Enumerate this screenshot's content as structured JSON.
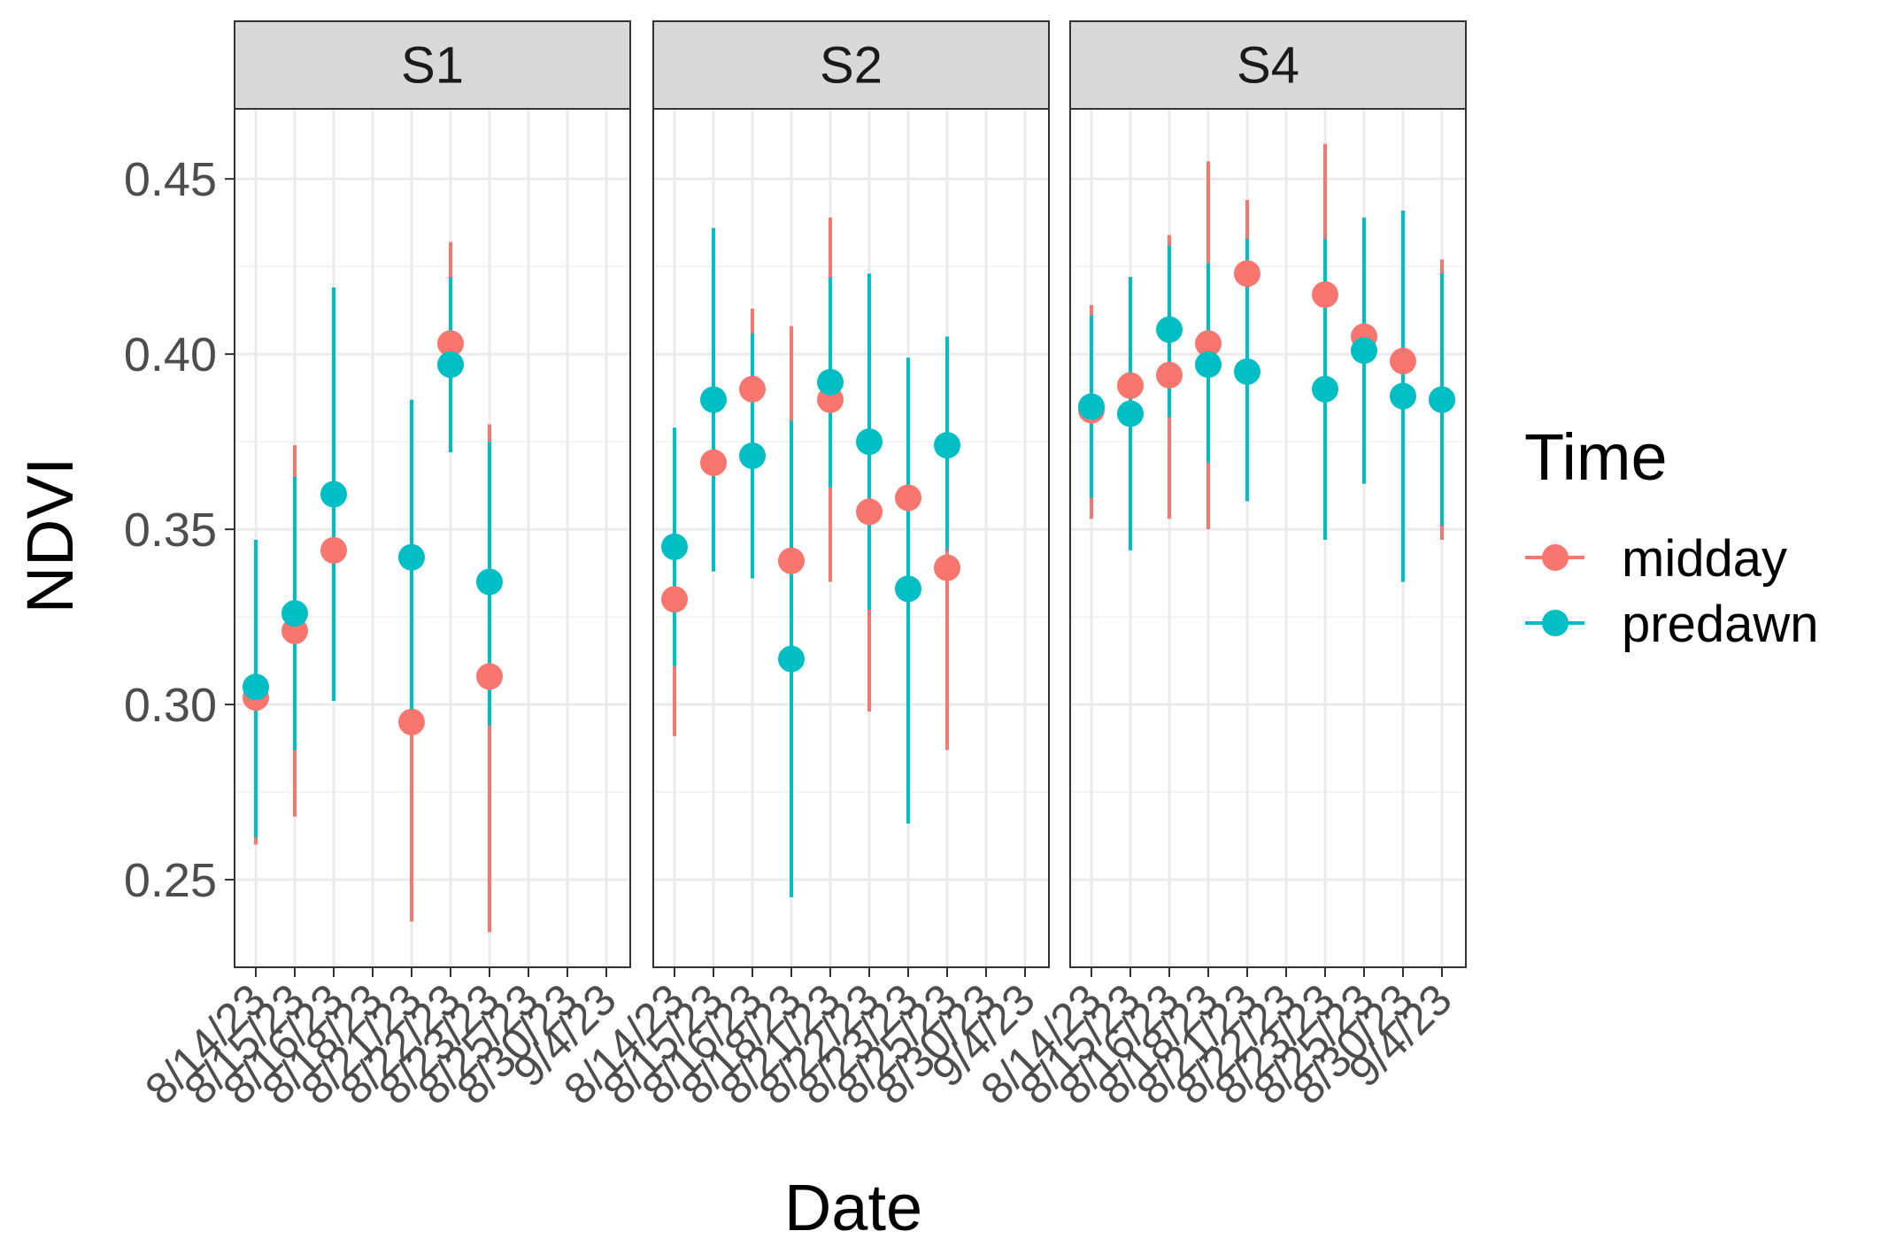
{
  "chart_data": {
    "type": "scatter",
    "xlabel": "Date",
    "ylabel": "NDVI",
    "ylim": [
      0.225,
      0.47
    ],
    "yticks": [
      "0.25",
      "0.30",
      "0.35",
      "0.40",
      "0.45"
    ],
    "x": [
      "8/14/23",
      "8/15/23",
      "8/16/23",
      "8/18/23",
      "8/21/23",
      "8/22/23",
      "8/23/23",
      "8/25/23",
      "8/30/23",
      "9/4/23"
    ],
    "grid": true,
    "legend": {
      "title": "Time",
      "position": "right",
      "entries": [
        {
          "name": "midday",
          "color": "#F8766D"
        },
        {
          "name": "predawn",
          "color": "#00BFC4"
        }
      ]
    },
    "panels": [
      {
        "label": "S1",
        "series": [
          {
            "name": "midday",
            "points": [
              {
                "x": "8/14/23",
                "y": 0.302,
                "ymin": 0.26,
                "ymax": 0.345
              },
              {
                "x": "8/15/23",
                "y": 0.321,
                "ymin": 0.268,
                "ymax": 0.374
              },
              {
                "x": "8/16/23",
                "y": 0.344,
                "ymin": 0.303,
                "ymax": 0.384
              },
              {
                "x": "8/21/23",
                "y": 0.295,
                "ymin": 0.238,
                "ymax": 0.351
              },
              {
                "x": "8/22/23",
                "y": 0.403,
                "ymin": 0.374,
                "ymax": 0.432
              },
              {
                "x": "8/23/23",
                "y": 0.308,
                "ymin": 0.235,
                "ymax": 0.38
              }
            ]
          },
          {
            "name": "predawn",
            "points": [
              {
                "x": "8/14/23",
                "y": 0.305,
                "ymin": 0.262,
                "ymax": 0.347
              },
              {
                "x": "8/15/23",
                "y": 0.326,
                "ymin": 0.287,
                "ymax": 0.365
              },
              {
                "x": "8/16/23",
                "y": 0.36,
                "ymin": 0.301,
                "ymax": 0.419
              },
              {
                "x": "8/21/23",
                "y": 0.342,
                "ymin": 0.297,
                "ymax": 0.387
              },
              {
                "x": "8/22/23",
                "y": 0.397,
                "ymin": 0.372,
                "ymax": 0.422
              },
              {
                "x": "8/23/23",
                "y": 0.335,
                "ymin": 0.294,
                "ymax": 0.375
              }
            ]
          }
        ]
      },
      {
        "label": "S2",
        "series": [
          {
            "name": "midday",
            "points": [
              {
                "x": "8/14/23",
                "y": 0.33,
                "ymin": 0.291,
                "ymax": 0.37
              },
              {
                "x": "8/15/23",
                "y": 0.369,
                "ymin": 0.338,
                "ymax": 0.4
              },
              {
                "x": "8/16/23",
                "y": 0.39,
                "ymin": 0.367,
                "ymax": 0.413
              },
              {
                "x": "8/18/23",
                "y": 0.341,
                "ymin": 0.273,
                "ymax": 0.408
              },
              {
                "x": "8/21/23",
                "y": 0.387,
                "ymin": 0.335,
                "ymax": 0.439
              },
              {
                "x": "8/22/23",
                "y": 0.355,
                "ymin": 0.298,
                "ymax": 0.412
              },
              {
                "x": "8/23/23",
                "y": 0.359,
                "ymin": 0.332,
                "ymax": 0.386
              },
              {
                "x": "8/25/23",
                "y": 0.339,
                "ymin": 0.287,
                "ymax": 0.39
              }
            ]
          },
          {
            "name": "predawn",
            "points": [
              {
                "x": "8/14/23",
                "y": 0.345,
                "ymin": 0.311,
                "ymax": 0.379
              },
              {
                "x": "8/15/23",
                "y": 0.387,
                "ymin": 0.338,
                "ymax": 0.436
              },
              {
                "x": "8/16/23",
                "y": 0.371,
                "ymin": 0.336,
                "ymax": 0.406
              },
              {
                "x": "8/18/23",
                "y": 0.313,
                "ymin": 0.245,
                "ymax": 0.381
              },
              {
                "x": "8/21/23",
                "y": 0.392,
                "ymin": 0.362,
                "ymax": 0.422
              },
              {
                "x": "8/22/23",
                "y": 0.375,
                "ymin": 0.327,
                "ymax": 0.423
              },
              {
                "x": "8/23/23",
                "y": 0.333,
                "ymin": 0.266,
                "ymax": 0.399
              },
              {
                "x": "8/25/23",
                "y": 0.374,
                "ymin": 0.344,
                "ymax": 0.405
              }
            ]
          }
        ]
      },
      {
        "label": "S4",
        "series": [
          {
            "name": "midday",
            "points": [
              {
                "x": "8/14/23",
                "y": 0.384,
                "ymin": 0.353,
                "ymax": 0.414
              },
              {
                "x": "8/15/23",
                "y": 0.391,
                "ymin": 0.374,
                "ymax": 0.408
              },
              {
                "x": "8/16/23",
                "y": 0.394,
                "ymin": 0.353,
                "ymax": 0.434
              },
              {
                "x": "8/18/23",
                "y": 0.403,
                "ymin": 0.35,
                "ymax": 0.455
              },
              {
                "x": "8/21/23",
                "y": 0.423,
                "ymin": 0.401,
                "ymax": 0.444
              },
              {
                "x": "8/23/23",
                "y": 0.417,
                "ymin": 0.374,
                "ymax": 0.46
              },
              {
                "x": "8/25/23",
                "y": 0.405,
                "ymin": 0.373,
                "ymax": 0.437
              },
              {
                "x": "8/30/23",
                "y": 0.398,
                "ymin": 0.374,
                "ymax": 0.422
              },
              {
                "x": "9/4/23",
                "y": 0.387,
                "ymin": 0.347,
                "ymax": 0.427
              }
            ]
          },
          {
            "name": "predawn",
            "points": [
              {
                "x": "8/14/23",
                "y": 0.385,
                "ymin": 0.359,
                "ymax": 0.411
              },
              {
                "x": "8/15/23",
                "y": 0.383,
                "ymin": 0.344,
                "ymax": 0.422
              },
              {
                "x": "8/16/23",
                "y": 0.407,
                "ymin": 0.382,
                "ymax": 0.431
              },
              {
                "x": "8/18/23",
                "y": 0.397,
                "ymin": 0.369,
                "ymax": 0.426
              },
              {
                "x": "8/21/23",
                "y": 0.395,
                "ymin": 0.358,
                "ymax": 0.433
              },
              {
                "x": "8/23/23",
                "y": 0.39,
                "ymin": 0.347,
                "ymax": 0.433
              },
              {
                "x": "8/25/23",
                "y": 0.401,
                "ymin": 0.363,
                "ymax": 0.439
              },
              {
                "x": "8/30/23",
                "y": 0.388,
                "ymin": 0.335,
                "ymax": 0.441
              },
              {
                "x": "9/4/23",
                "y": 0.387,
                "ymin": 0.351,
                "ymax": 0.423
              }
            ]
          }
        ]
      }
    ]
  }
}
